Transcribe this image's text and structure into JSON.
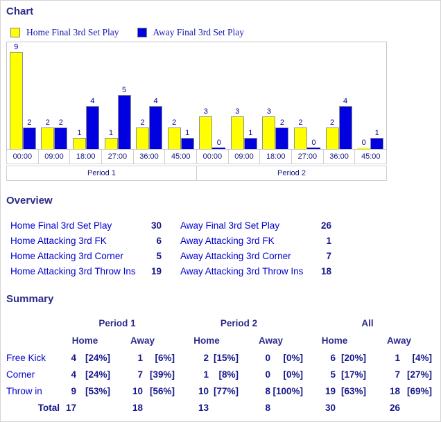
{
  "chart_section": {
    "title": "Chart"
  },
  "chart_data": {
    "type": "bar",
    "title": "Chart",
    "categories": [
      "00:00",
      "09:00",
      "18:00",
      "27:00",
      "36:00",
      "45:00",
      "00:00",
      "09:00",
      "18:00",
      "27:00",
      "36:00",
      "45:00"
    ],
    "period_groups": [
      {
        "label": "Period 1",
        "span": 6
      },
      {
        "label": "Period 2",
        "span": 6
      }
    ],
    "series": [
      {
        "name": "Home Final 3rd Set Play",
        "color": "#ffff00",
        "values": [
          9,
          2,
          1,
          1,
          2,
          2,
          3,
          3,
          3,
          2,
          2,
          0
        ]
      },
      {
        "name": "Away Final 3rd Set Play",
        "color": "#0000e0",
        "values": [
          2,
          2,
          4,
          5,
          4,
          1,
          0,
          1,
          2,
          0,
          4,
          1
        ]
      }
    ],
    "ylim": [
      0,
      9
    ],
    "grid": false,
    "legend_position": "top",
    "bar_labels": true
  },
  "overview": {
    "title": "Overview",
    "rows": [
      {
        "left_label": "Home Final 3rd Set Play",
        "left_value": "30",
        "right_label": "Away Final 3rd Set Play",
        "right_value": "26"
      },
      {
        "left_label": "Home Attacking 3rd FK",
        "left_value": "6",
        "right_label": "Away Attacking 3rd FK",
        "right_value": "1"
      },
      {
        "left_label": "Home Attacking 3rd Corner",
        "left_value": "5",
        "right_label": "Away Attacking 3rd Corner",
        "right_value": "7"
      },
      {
        "left_label": "Home Attacking 3rd Throw Ins",
        "left_value": "19",
        "right_label": "Away Attacking 3rd Throw Ins",
        "right_value": "18"
      }
    ]
  },
  "summary": {
    "title": "Summary",
    "group_headers": [
      "Period 1",
      "Period 2",
      "All"
    ],
    "sub_headers": [
      "Home",
      "Away",
      "Home",
      "Away",
      "Home",
      "Away"
    ],
    "rows": [
      {
        "label": "Free Kick",
        "cells": [
          {
            "n": "4",
            "p": "[24%]"
          },
          {
            "n": "1",
            "p": "[6%]"
          },
          {
            "n": "2",
            "p": "[15%]"
          },
          {
            "n": "0",
            "p": "[0%]"
          },
          {
            "n": "6",
            "p": "[20%]"
          },
          {
            "n": "1",
            "p": "[4%]"
          }
        ]
      },
      {
        "label": "Corner",
        "cells": [
          {
            "n": "4",
            "p": "[24%]"
          },
          {
            "n": "7",
            "p": "[39%]"
          },
          {
            "n": "1",
            "p": "[8%]"
          },
          {
            "n": "0",
            "p": "[0%]"
          },
          {
            "n": "5",
            "p": "[17%]"
          },
          {
            "n": "7",
            "p": "[27%]"
          }
        ]
      },
      {
        "label": "Throw in",
        "cells": [
          {
            "n": "9",
            "p": "[53%]"
          },
          {
            "n": "10",
            "p": "[56%]"
          },
          {
            "n": "10",
            "p": "[77%]"
          },
          {
            "n": "8",
            "p": "[100%]"
          },
          {
            "n": "19",
            "p": "[63%]"
          },
          {
            "n": "18",
            "p": "[69%]"
          }
        ]
      }
    ],
    "total_row": {
      "label": "Total",
      "values": [
        "17",
        "18",
        "13",
        "8",
        "30",
        "26"
      ]
    }
  },
  "colors": {
    "heading": "#2b2b8a",
    "label_blue": "#0000cc",
    "value_navy": "#16168a",
    "home_bar": "#ffff00",
    "away_bar": "#0000e0",
    "axis_text": "#15157e",
    "page_border": "#d3d3d3"
  }
}
